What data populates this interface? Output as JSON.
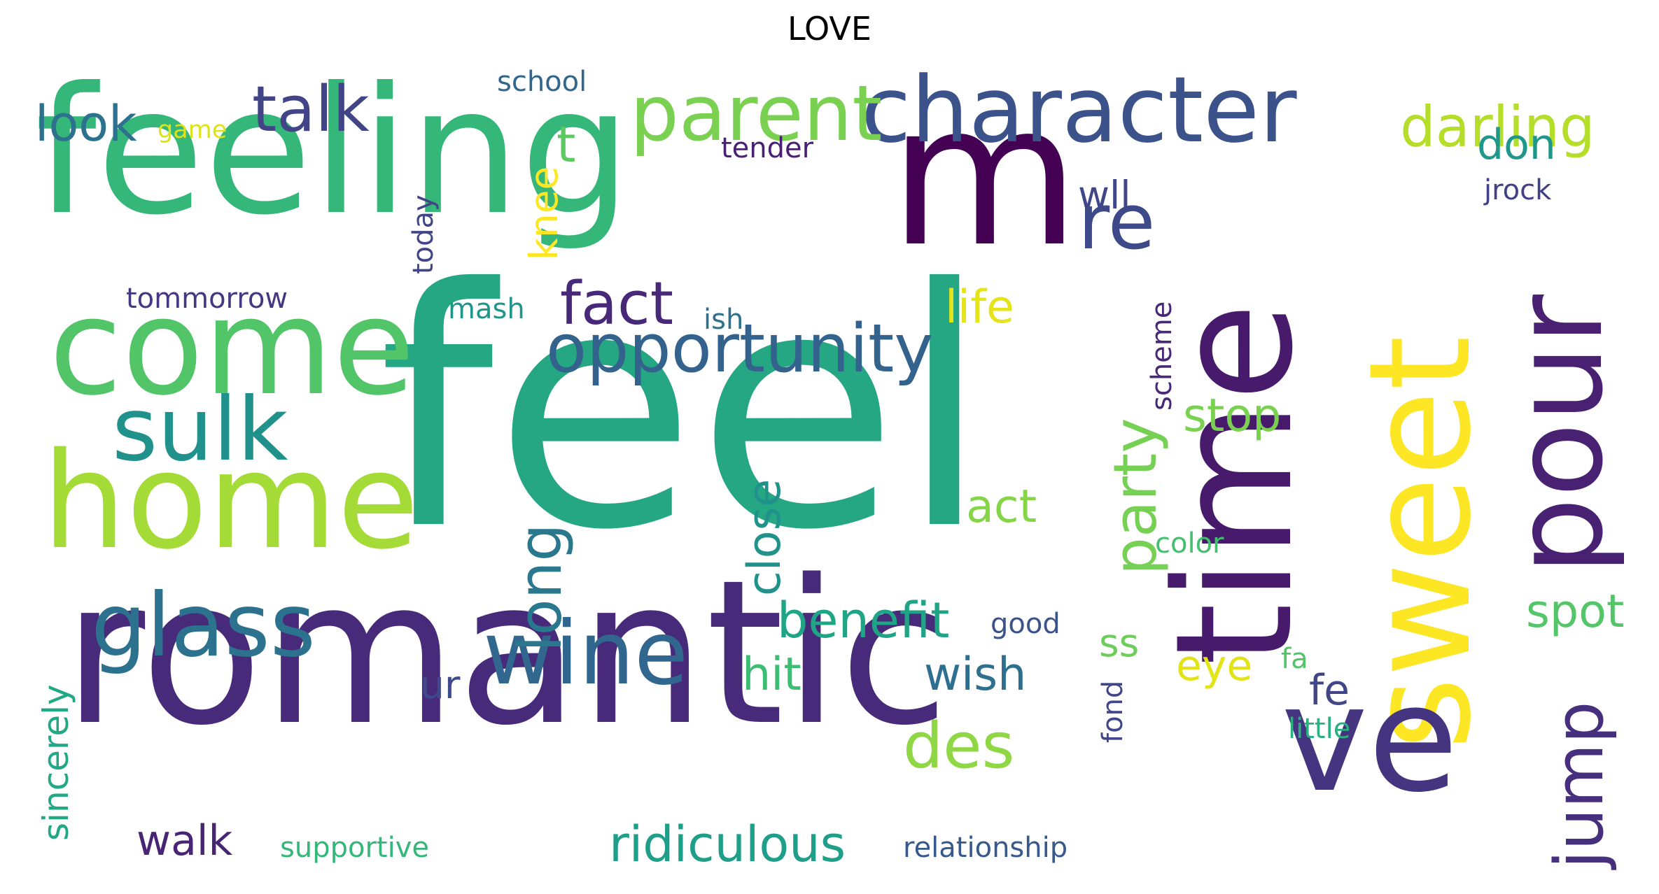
{
  "title": "LOVE",
  "colors": {
    "background": "#ffffff",
    "title": "#000000"
  },
  "words": [
    {
      "text": "feel",
      "color": "#26a783"
    },
    {
      "text": "romantic",
      "color": "#472a7a"
    },
    {
      "text": "feeling",
      "color": "#35b779"
    },
    {
      "text": "m",
      "color": "#440154"
    },
    {
      "text": "time",
      "color": "#481a6c"
    },
    {
      "text": "sweet",
      "color": "#fde725"
    },
    {
      "text": "ve",
      "color": "#453581"
    },
    {
      "text": "come",
      "color": "#52c569"
    },
    {
      "text": "home",
      "color": "#a5db36"
    },
    {
      "text": "pour",
      "color": "#482173"
    },
    {
      "text": "character",
      "color": "#3b528b"
    },
    {
      "text": "sulk",
      "color": "#21918c"
    },
    {
      "text": "glass",
      "color": "#2c728e"
    },
    {
      "text": "wine",
      "color": "#31668e"
    },
    {
      "text": "opportunity",
      "color": "#33638d"
    },
    {
      "text": "parent",
      "color": "#7ad151"
    },
    {
      "text": "talk",
      "color": "#414487"
    },
    {
      "text": "re",
      "color": "#3e4989"
    },
    {
      "text": "jump",
      "color": "#46307e"
    },
    {
      "text": "fact",
      "color": "#482878"
    },
    {
      "text": "long",
      "color": "#2a788e"
    },
    {
      "text": "party",
      "color": "#75d054"
    },
    {
      "text": "des",
      "color": "#8fd744"
    },
    {
      "text": "darling",
      "color": "#b5de2b"
    },
    {
      "text": "ridiculous",
      "color": "#1f9e89"
    },
    {
      "text": "benefit",
      "color": "#20a486"
    },
    {
      "text": "close",
      "color": "#21918c"
    },
    {
      "text": "wish",
      "color": "#2e6e8e"
    },
    {
      "text": "look",
      "color": "#2c728e"
    },
    {
      "text": "life",
      "color": "#e5e419"
    },
    {
      "text": "t",
      "color": "#5ec962"
    },
    {
      "text": "act",
      "color": "#86d549"
    },
    {
      "text": "stop",
      "color": "#7ad151"
    },
    {
      "text": "spot",
      "color": "#54c568"
    },
    {
      "text": "walk",
      "color": "#482475"
    },
    {
      "text": "hit",
      "color": "#3dbc74"
    },
    {
      "text": "eye",
      "color": "#e2e418"
    },
    {
      "text": "fe",
      "color": "#404688"
    },
    {
      "text": "don",
      "color": "#1f988b"
    },
    {
      "text": "sincerely",
      "color": "#22a884"
    },
    {
      "text": "knee",
      "color": "#fde725"
    },
    {
      "text": "wll",
      "color": "#3f4788"
    },
    {
      "text": "ur",
      "color": "#3e4a89"
    },
    {
      "text": "ss",
      "color": "#6ccd5a"
    },
    {
      "text": "supportive",
      "color": "#35b779"
    },
    {
      "text": "relationship",
      "color": "#38598c"
    },
    {
      "text": "tender",
      "color": "#482173"
    },
    {
      "text": "school",
      "color": "#31668e"
    },
    {
      "text": "today",
      "color": "#414487"
    },
    {
      "text": "game",
      "color": "#dde318"
    },
    {
      "text": "tommorrow",
      "color": "#453781"
    },
    {
      "text": "mash",
      "color": "#1f958b"
    },
    {
      "text": "ish",
      "color": "#2c728e"
    },
    {
      "text": "good",
      "color": "#3b528b"
    },
    {
      "text": "color",
      "color": "#44bf70"
    },
    {
      "text": "little",
      "color": "#2ab07f"
    },
    {
      "text": "fond",
      "color": "#404688"
    },
    {
      "text": "scheme",
      "color": "#482878"
    },
    {
      "text": "jrock",
      "color": "#424086"
    },
    {
      "text": "fa",
      "color": "#52c569"
    }
  ]
}
